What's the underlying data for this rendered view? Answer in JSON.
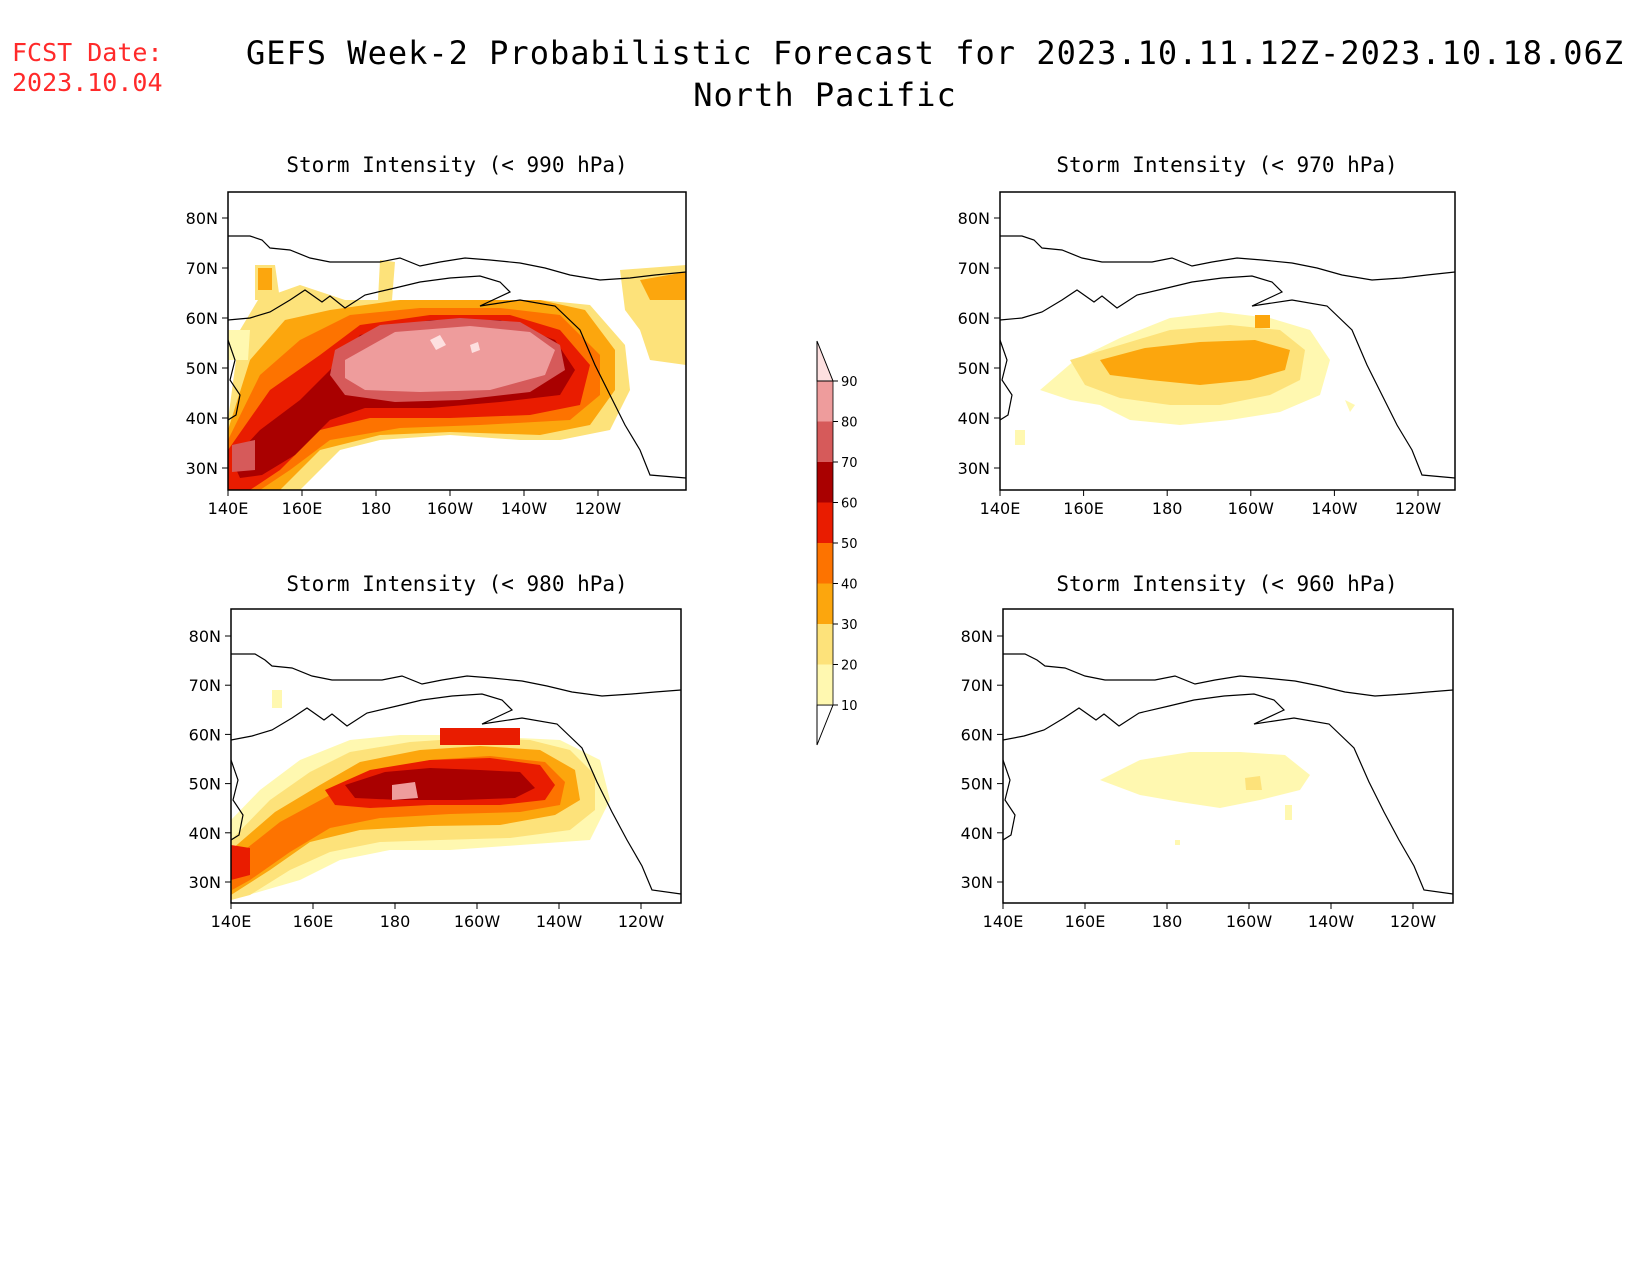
{
  "header": {
    "fcst_label": "FCST Date:",
    "fcst_date": "2023.10.04",
    "title": "GEFS Week-2 Probabilistic Forecast for 2023.10.11.12Z-2023.10.18.06Z",
    "region": "North Pacific"
  },
  "axes": {
    "lat_ticks": [
      "80N",
      "70N",
      "60N",
      "50N",
      "40N",
      "30N"
    ],
    "lon_ticks": [
      "140E",
      "160E",
      "180",
      "160W",
      "140W",
      "120W"
    ]
  },
  "colorbar": {
    "levels": [
      10,
      20,
      30,
      40,
      50,
      60,
      70,
      80,
      90
    ],
    "colors": [
      "#fff8b0",
      "#fde27a",
      "#fca60d",
      "#fd7300",
      "#e91c00",
      "#a90000",
      "#d65a5a",
      "#ee9c9c",
      "#fde0e0"
    ]
  },
  "panels": [
    {
      "title": "Storm Intensity (< 990 hPa)",
      "position": "top-left"
    },
    {
      "title": "Storm Intensity (< 980 hPa)",
      "position": "bottom-left"
    },
    {
      "title": "Storm Intensity (< 970 hPa)",
      "position": "top-right"
    },
    {
      "title": "Storm Intensity (< 960 hPa)",
      "position": "bottom-right"
    }
  ]
}
